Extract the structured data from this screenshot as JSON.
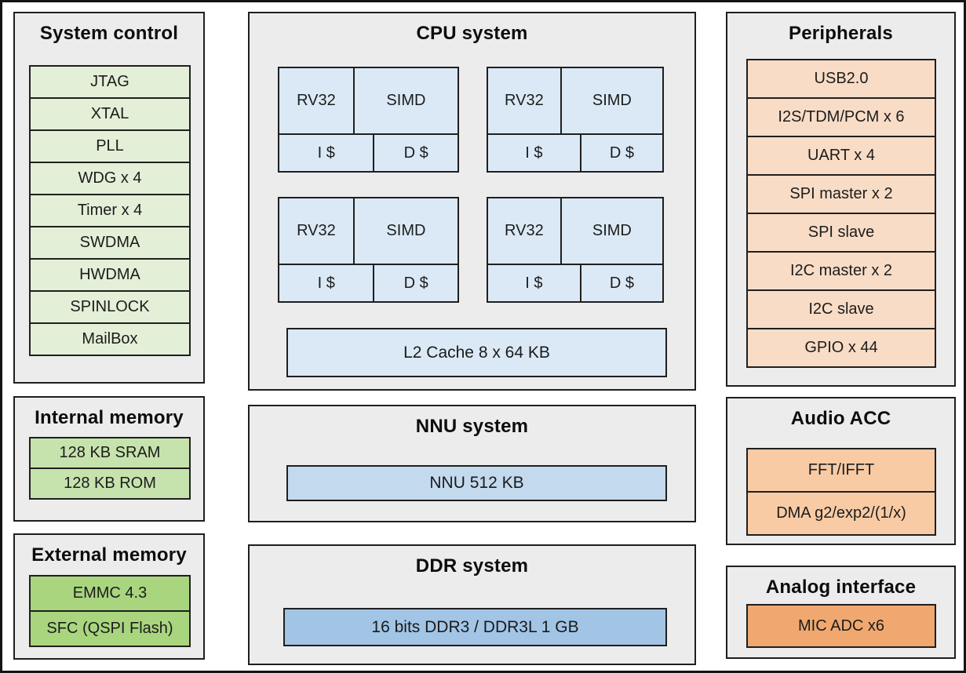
{
  "colors": {
    "panel-bg": "#ececec",
    "line": "#1f1f1f",
    "green-light": "#e3efd7",
    "green-mid": "#c7e3ad",
    "green-dark": "#a9d57f",
    "blue-light": "#dbe9f6",
    "blue-mid": "#c3d9ee",
    "blue-dark": "#a2c5e6",
    "peach-light": "#f9dcc6",
    "peach-mid": "#f8cba4",
    "peach-dark": "#f0a870"
  },
  "panels": {
    "system_control": {
      "title": "System control",
      "items": [
        "JTAG",
        "XTAL",
        "PLL",
        "WDG x 4",
        "Timer x 4",
        "SWDMA",
        "HWDMA",
        "SPINLOCK",
        "MailBox"
      ]
    },
    "internal_memory": {
      "title": "Internal memory",
      "items": [
        "128 KB SRAM",
        "128 KB ROM"
      ]
    },
    "external_memory": {
      "title": "External memory",
      "items": [
        "EMMC 4.3",
        "SFC (QSPI Flash)"
      ]
    },
    "cpu_system": {
      "title": "CPU system",
      "core_count": 4,
      "core": {
        "cpu": "RV32",
        "simd": "SIMD",
        "icache": "I $",
        "dcache": "D $"
      },
      "l2_cache_label": "L2 Cache 8 x 64 KB"
    },
    "nnu_system": {
      "title": "NNU system",
      "block_label": "NNU 512 KB"
    },
    "ddr_system": {
      "title": "DDR system",
      "block_label": "16 bits DDR3 / DDR3L 1 GB"
    },
    "peripherals": {
      "title": "Peripherals",
      "items": [
        "USB2.0",
        "I2S/TDM/PCM x 6",
        "UART x 4",
        "SPI master x 2",
        "SPI slave",
        "I2C master x 2",
        "I2C slave",
        "GPIO x 44"
      ]
    },
    "audio_acc": {
      "title": "Audio ACC",
      "items": [
        "FFT/IFFT",
        "DMA g2/exp2/(1/x)"
      ]
    },
    "analog_interface": {
      "title": "Analog interface",
      "items": [
        "MIC ADC x6"
      ]
    }
  }
}
